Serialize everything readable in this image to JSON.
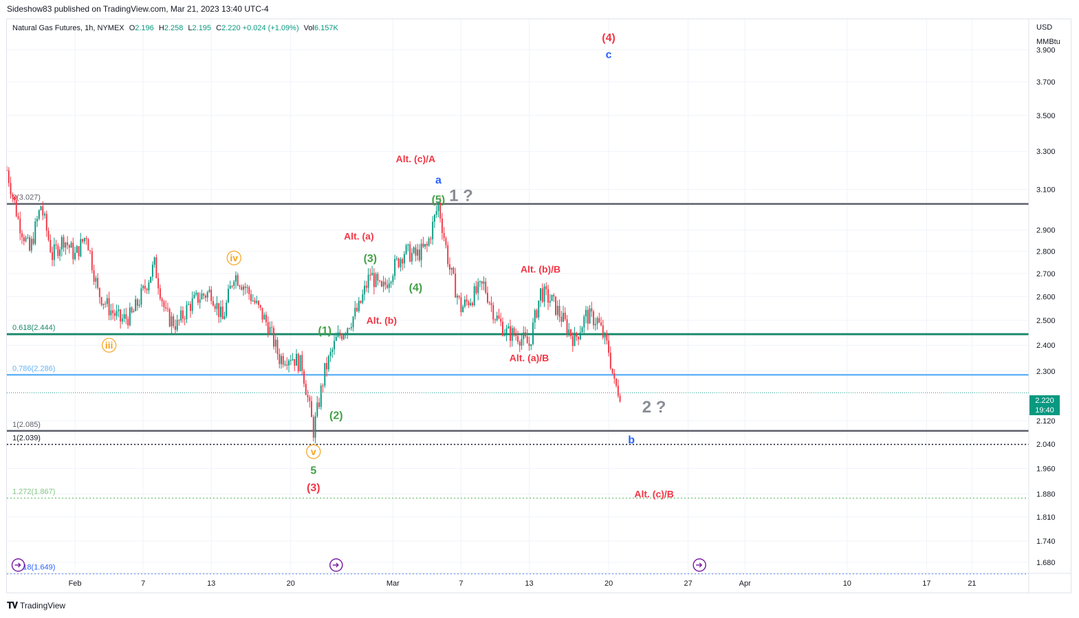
{
  "header": {
    "credit": "Sideshow83 published on TradingView.com, Mar 21, 2023 13:40 UTC-4"
  },
  "legend": {
    "symbol": "Natural Gas Futures, 1h, NYMEX",
    "o_label": "O",
    "o_value": "2.196",
    "h_label": "H",
    "h_value": "2.258",
    "l_label": "L",
    "l_value": "2.195",
    "c_label": "C",
    "c_value": "2.220",
    "change": "+0.024 (+1.09%)",
    "vol_label": "Vol",
    "vol_value": "6.157K"
  },
  "price_axis": {
    "currency": "USD",
    "unit": "MMBtu",
    "last_price": "2.220",
    "countdown": "19:40"
  },
  "footer": {
    "brand": "TradingView"
  },
  "colors": {
    "up": "#089981",
    "down": "#f23645",
    "red_label": "#f23645",
    "green_label": "#43a047",
    "blue_label": "#2962ff",
    "orange_label": "#f7a21b",
    "gray_label": "#8a8d96",
    "fib_gray": "#5d606b",
    "fib_teal": "#1b8a6b",
    "fib_blue": "#64b5f6",
    "fib_green": "#81c784",
    "fib_darkblue": "#2962ff"
  },
  "chart_data": {
    "type": "candlestick",
    "title": "Natural Gas Futures, 1h, NYMEX",
    "x_ticks": [
      {
        "label": "Feb",
        "date": "2023-02-01"
      },
      {
        "label": "7",
        "date": "2023-02-07"
      },
      {
        "label": "13",
        "date": "2023-02-13"
      },
      {
        "label": "20",
        "date": "2023-02-20"
      },
      {
        "label": "Mar",
        "date": "2023-03-01"
      },
      {
        "label": "7",
        "date": "2023-03-07"
      },
      {
        "label": "13",
        "date": "2023-03-13"
      },
      {
        "label": "20",
        "date": "2023-03-20"
      },
      {
        "label": "27",
        "date": "2023-03-27"
      },
      {
        "label": "Apr",
        "date": "2023-04-01"
      },
      {
        "label": "10",
        "date": "2023-04-10"
      },
      {
        "label": "17",
        "date": "2023-04-17"
      },
      {
        "label": "21",
        "date": "2023-04-21"
      }
    ],
    "y_ticks": [
      "3.900",
      "3.700",
      "3.500",
      "3.300",
      "3.100",
      "2.900",
      "2.800",
      "2.700",
      "2.600",
      "2.500",
      "2.400",
      "2.300",
      "2.120",
      "2.040",
      "1.960",
      "1.880",
      "1.810",
      "1.740",
      "1.680"
    ],
    "y_scale": "log",
    "ylim": [
      1.65,
      4.1
    ],
    "xlim": [
      "2023-01-26",
      "2023-04-26"
    ],
    "price_path": [
      {
        "date": "2023-01-26",
        "price": 3.2
      },
      {
        "date": "2023-01-27",
        "price": 2.95
      },
      {
        "date": "2023-01-28",
        "price": 2.8
      },
      {
        "date": "2023-01-29",
        "price": 3.02
      },
      {
        "date": "2023-01-30",
        "price": 2.78
      },
      {
        "date": "2023-01-31",
        "price": 2.86
      },
      {
        "date": "2023-02-01",
        "price": 2.78
      },
      {
        "date": "2023-02-02",
        "price": 2.88
      },
      {
        "date": "2023-02-03",
        "price": 2.62
      },
      {
        "date": "2023-02-04",
        "price": 2.55
      },
      {
        "date": "2023-02-05",
        "price": 2.5
      },
      {
        "date": "2023-02-06",
        "price": 2.52
      },
      {
        "date": "2023-02-07",
        "price": 2.62
      },
      {
        "date": "2023-02-08",
        "price": 2.74
      },
      {
        "date": "2023-02-09",
        "price": 2.52
      },
      {
        "date": "2023-02-10",
        "price": 2.48
      },
      {
        "date": "2023-02-11",
        "price": 2.56
      },
      {
        "date": "2023-02-12",
        "price": 2.6
      },
      {
        "date": "2023-02-13",
        "price": 2.62
      },
      {
        "date": "2023-02-14",
        "price": 2.5
      },
      {
        "date": "2023-02-15",
        "price": 2.7
      },
      {
        "date": "2023-02-16",
        "price": 2.64
      },
      {
        "date": "2023-02-17",
        "price": 2.56
      },
      {
        "date": "2023-02-18",
        "price": 2.48
      },
      {
        "date": "2023-02-19",
        "price": 2.35
      },
      {
        "date": "2023-02-20",
        "price": 2.36
      },
      {
        "date": "2023-02-21",
        "price": 2.32
      },
      {
        "date": "2023-02-22",
        "price": 2.085
      },
      {
        "date": "2023-02-23",
        "price": 2.3
      },
      {
        "date": "2023-02-24",
        "price": 2.42
      },
      {
        "date": "2023-02-25",
        "price": 2.48
      },
      {
        "date": "2023-02-26",
        "price": 2.55
      },
      {
        "date": "2023-02-27",
        "price": 2.7
      },
      {
        "date": "2023-02-28",
        "price": 2.62
      },
      {
        "date": "2023-03-01",
        "price": 2.72
      },
      {
        "date": "2023-03-02",
        "price": 2.8
      },
      {
        "date": "2023-03-03",
        "price": 2.78
      },
      {
        "date": "2023-03-04",
        "price": 2.82
      },
      {
        "date": "2023-03-05",
        "price": 3.027
      },
      {
        "date": "2023-03-06",
        "price": 2.72
      },
      {
        "date": "2023-03-07",
        "price": 2.55
      },
      {
        "date": "2023-03-08",
        "price": 2.6
      },
      {
        "date": "2023-03-09",
        "price": 2.65
      },
      {
        "date": "2023-03-10",
        "price": 2.52
      },
      {
        "date": "2023-03-11",
        "price": 2.45
      },
      {
        "date": "2023-03-12",
        "price": 2.44
      },
      {
        "date": "2023-03-13",
        "price": 2.4
      },
      {
        "date": "2023-03-14",
        "price": 2.62
      },
      {
        "date": "2023-03-15",
        "price": 2.58
      },
      {
        "date": "2023-03-16",
        "price": 2.5
      },
      {
        "date": "2023-03-17",
        "price": 2.42
      },
      {
        "date": "2023-03-18",
        "price": 2.52
      },
      {
        "date": "2023-03-19",
        "price": 2.5
      },
      {
        "date": "2023-03-20",
        "price": 2.38
      },
      {
        "date": "2023-03-20T12:00",
        "price": 2.25
      },
      {
        "date": "2023-03-21",
        "price": 2.22
      }
    ],
    "fib_levels": [
      {
        "label": "0(3.027)",
        "price": 3.027,
        "color": "#5d606b",
        "style": "solid",
        "width": 2.5
      },
      {
        "label": "0.618(2.444)",
        "price": 2.444,
        "color": "#1b8a6b",
        "style": "solid",
        "width": 3
      },
      {
        "label": "0.786(2.286)",
        "price": 2.286,
        "color": "#64b5f6",
        "style": "solid",
        "width": 2.5
      },
      {
        "label": "1(2.085)",
        "price": 2.085,
        "color": "#5d606b",
        "style": "solid",
        "width": 2.5
      },
      {
        "label": "1(2.039)",
        "price": 2.039,
        "color": "#131722",
        "style": "dotted",
        "width": 1.5
      },
      {
        "label": "1.272(1.867)",
        "price": 1.867,
        "color": "#81c784",
        "style": "dotted",
        "width": 1.5
      },
      {
        "label": "1.618(1.649)",
        "price": 1.649,
        "color": "#2962ff",
        "style": "dotted",
        "width": 1.5
      }
    ],
    "wave_labels": [
      {
        "text": "(4)",
        "date": "2023-03-20",
        "price": 3.98,
        "color": "red",
        "size": 16
      },
      {
        "text": "c",
        "date": "2023-03-20",
        "price": 3.87,
        "color": "blue",
        "size": 16
      },
      {
        "text": "Alt. (c)/A",
        "date": "2023-03-03",
        "price": 3.26,
        "color": "red",
        "size": 14
      },
      {
        "text": "a",
        "date": "2023-03-05",
        "price": 3.15,
        "color": "blue",
        "size": 16
      },
      {
        "text": "(5)",
        "date": "2023-03-05",
        "price": 3.05,
        "color": "green",
        "size": 16
      },
      {
        "text": "1 ?",
        "date": "2023-03-07",
        "price": 3.07,
        "color": "gray",
        "size": 24
      },
      {
        "text": "Alt. (a)",
        "date": "2023-02-26",
        "price": 2.87,
        "color": "red",
        "size": 14
      },
      {
        "text": "(3)",
        "date": "2023-02-27",
        "price": 2.77,
        "color": "green",
        "size": 16
      },
      {
        "text": "iv",
        "date": "2023-02-15",
        "price": 2.77,
        "color": "orange",
        "size": 14
      },
      {
        "text": "Alt. (b)/B",
        "date": "2023-03-14",
        "price": 2.72,
        "color": "red",
        "size": 14
      },
      {
        "text": "(4)",
        "date": "2023-03-03",
        "price": 2.64,
        "color": "green",
        "size": 16
      },
      {
        "text": "Alt. (b)",
        "date": "2023-02-28",
        "price": 2.5,
        "color": "red",
        "size": 14
      },
      {
        "text": "(1)",
        "date": "2023-02-23",
        "price": 2.46,
        "color": "green",
        "size": 16
      },
      {
        "text": "iii",
        "date": "2023-02-04",
        "price": 2.4,
        "color": "orange",
        "size": 14
      },
      {
        "text": "Alt. (a)/B",
        "date": "2023-03-13",
        "price": 2.35,
        "color": "red",
        "size": 14
      },
      {
        "text": "2 ?",
        "date": "2023-03-24",
        "price": 2.17,
        "color": "gray",
        "size": 24
      },
      {
        "text": "(2)",
        "date": "2023-02-24",
        "price": 2.14,
        "color": "green",
        "size": 16
      },
      {
        "text": "b",
        "date": "2023-03-22",
        "price": 2.055,
        "color": "blue",
        "size": 16
      },
      {
        "text": "v",
        "date": "2023-02-22",
        "price": 2.015,
        "color": "orange",
        "size": 14
      },
      {
        "text": "5",
        "date": "2023-02-22",
        "price": 1.955,
        "color": "green",
        "size": 16
      },
      {
        "text": "(3)",
        "date": "2023-02-22",
        "price": 1.9,
        "color": "red",
        "size": 16
      },
      {
        "text": "Alt. (c)/B",
        "date": "2023-03-24",
        "price": 1.88,
        "color": "red",
        "size": 14
      }
    ],
    "events": [
      "2023-01-27",
      "2023-02-24",
      "2023-03-28"
    ]
  }
}
